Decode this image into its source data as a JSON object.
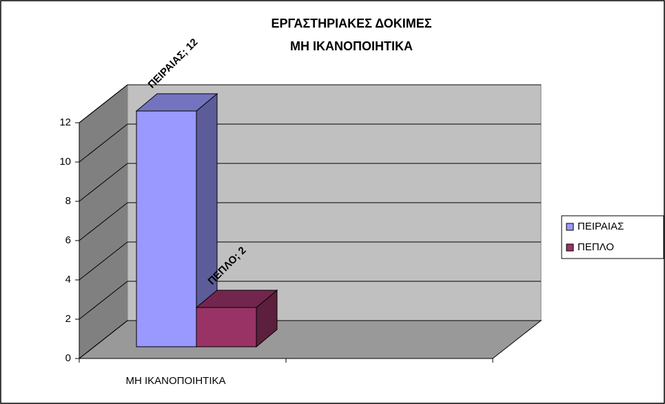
{
  "chart_data": {
    "type": "bar3d",
    "title": [
      "ΕΡΓΑΣΤΗΡΙΑΚΕΣ ΔΟΚΙΜΕΣ",
      "ΜΗ ΙΚΑΝΟΠΟΙΗΤΙΚΑ"
    ],
    "categories": [
      "ΜΗ ΙΚΑΝΟΠΟΙΗΤΙΚΑ"
    ],
    "series": [
      {
        "name": "ΠΕΙΡΑΙΑΣ",
        "color": "#9999ff",
        "values": [
          12
        ],
        "value_labels": [
          "ΠΕΙΡΑΙΑΣ; 12"
        ]
      },
      {
        "name": "ΠΕΠΛΟ",
        "color": "#993366",
        "values": [
          2
        ],
        "value_labels": [
          "ΠΕΠΛΟ; 2"
        ]
      }
    ],
    "ylim": [
      0,
      12
    ],
    "yticks": [
      0,
      2,
      4,
      6,
      8,
      10,
      12
    ],
    "grid": true,
    "legend": "right"
  }
}
